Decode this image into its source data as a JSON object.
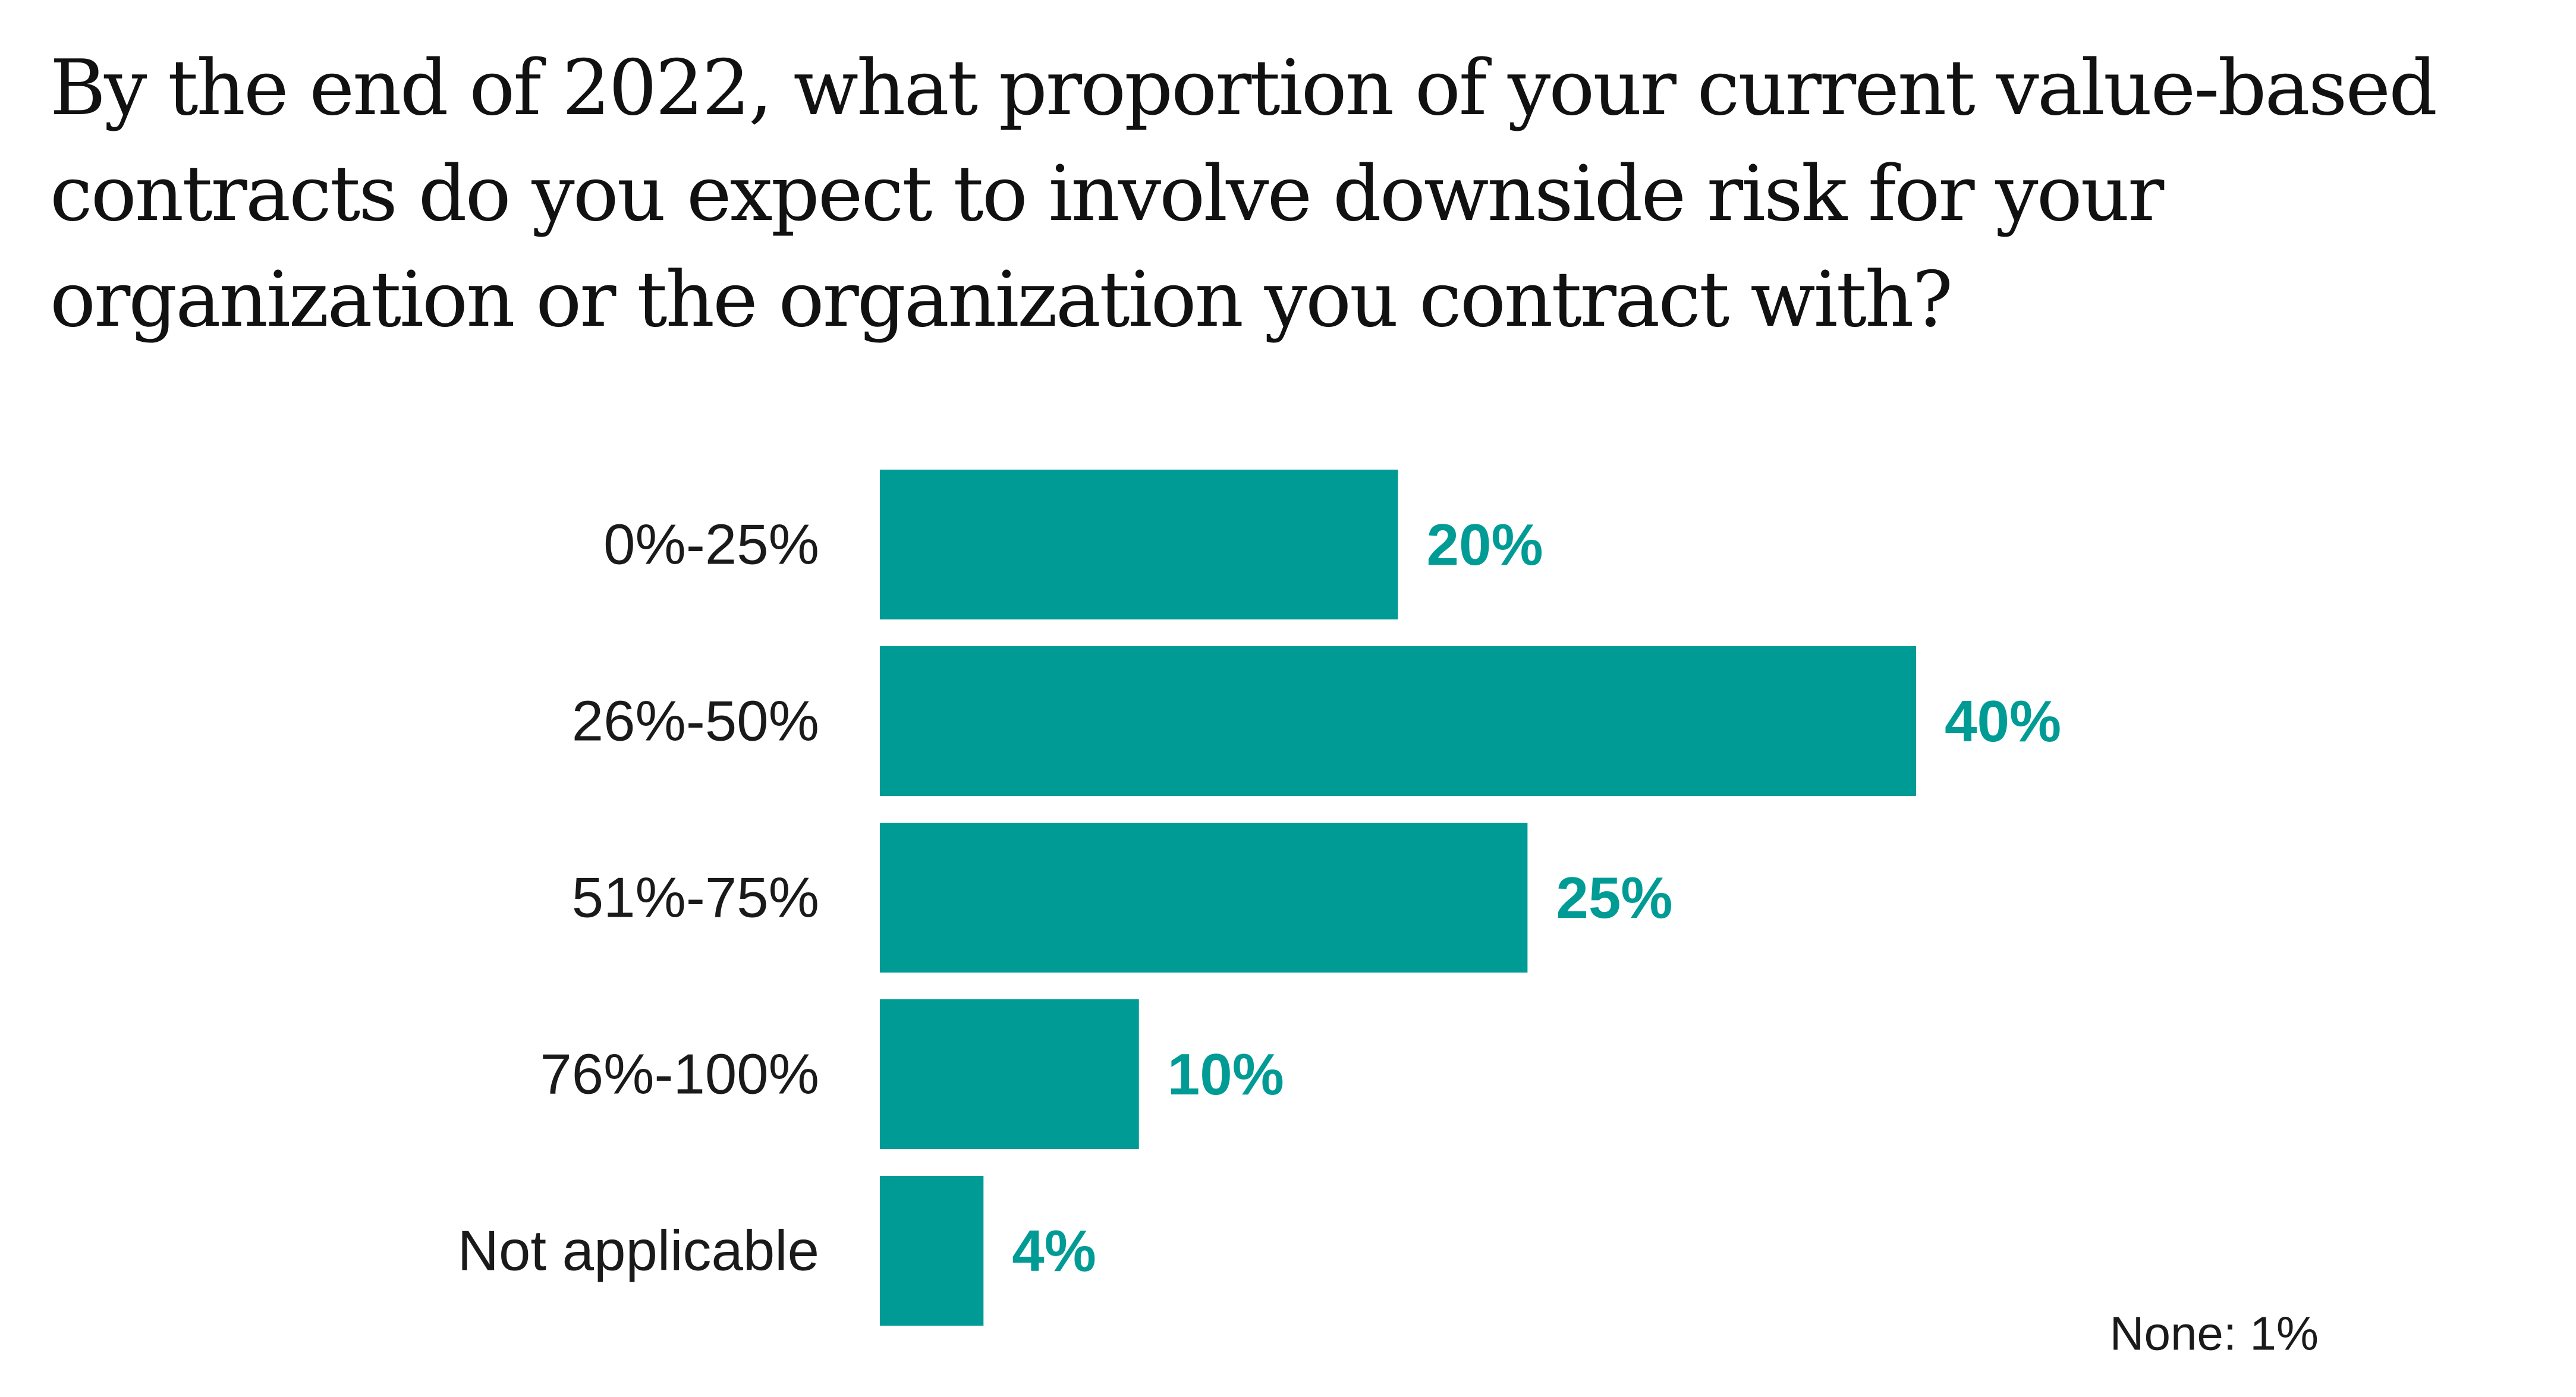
{
  "chart_data": {
    "type": "bar",
    "orientation": "horizontal",
    "title": "By the end of 2022, what proportion of your current value-based contracts do you expect to involve downside risk for your organization or the organization you contract with?",
    "categories": [
      "0%-25%",
      "26%-50%",
      "51%-75%",
      "76%-100%",
      "Not applicable"
    ],
    "values": [
      20,
      40,
      25,
      10,
      4
    ],
    "value_labels": [
      "20%",
      "40%",
      "25%",
      "10%",
      "4%"
    ],
    "unit": "%",
    "xlim": [
      0,
      40
    ],
    "xlabel": "",
    "ylabel": "",
    "grid": false,
    "legend": "none",
    "annotation": "None: 1%",
    "colors": {
      "bar": "#009b95",
      "value_label": "#009b95",
      "text": "#1a1a1a"
    }
  }
}
